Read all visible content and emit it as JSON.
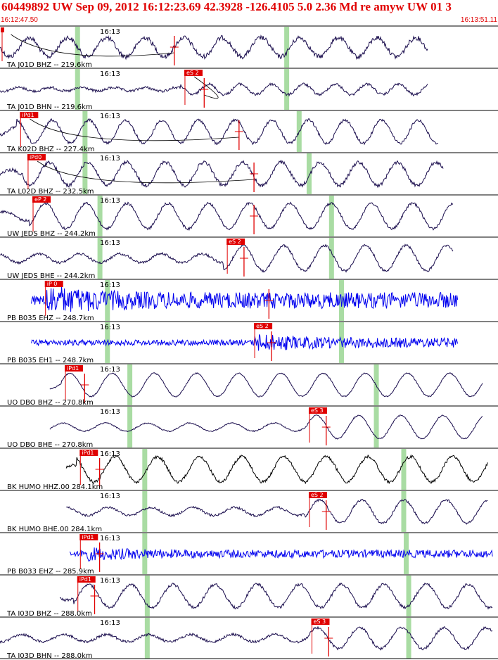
{
  "header": {
    "title": "60449892 UW Sep 09, 2012 16:12:23.69   42.3928 -126.4105  5.0 2.36 Md re amyw UW 01   3",
    "start_time": "16:12:47.50",
    "end_time": "16:13:51.11"
  },
  "time_tick_label": "16:13",
  "colors": {
    "header_red": "#e00000",
    "pick_red": "#e00000",
    "green_window": "#a9dca3",
    "trace_dark": "#1a0d4d",
    "trace_blue": "#0000ee",
    "trace_black": "#000000"
  },
  "traces": [
    {
      "label": "TA J01D BHZ -- 219.6km",
      "color": "dark",
      "pick": "",
      "pick_pos": 0.002,
      "spike_pos": 0.35,
      "green": [
        0.155,
        0.575
      ],
      "amp": 0.45,
      "period": 55,
      "noise": 0.25,
      "start": 0.0,
      "end": 0.86,
      "curve": true
    },
    {
      "label": "TA J01D BHN -- 219.6km",
      "color": "dark",
      "pick": "eS 2",
      "pick_pos": 0.37,
      "spike_pos": 0.41,
      "green": [
        0.155,
        0.575
      ],
      "amp": 0.25,
      "period": 45,
      "noise": 0.25,
      "start": 0.0,
      "end": 0.86,
      "curve": true
    },
    {
      "label": "TA K02D BHZ -- 227.4km",
      "color": "dark",
      "pick": "iPd1",
      "pick_pos": 0.04,
      "spike_pos": 0.48,
      "green": [
        0.17,
        0.6
      ],
      "amp": 0.55,
      "period": 52,
      "noise": 0.12,
      "start": 0.0,
      "end": 0.88,
      "curve": true
    },
    {
      "label": "TA L02D BHZ -- 232.5km",
      "color": "dark",
      "pick": "iPd0",
      "pick_pos": 0.055,
      "spike_pos": 0.51,
      "green": [
        0.17,
        0.62
      ],
      "amp": 0.55,
      "period": 55,
      "noise": 0.15,
      "start": 0.0,
      "end": 0.89,
      "curve": true
    },
    {
      "label": "UW JEDS BHZ -- 244.2km",
      "color": "dark",
      "pick": "eP 2",
      "pick_pos": 0.065,
      "spike_pos": 0.51,
      "green": [
        0.2,
        0.665
      ],
      "amp": 0.6,
      "period": 58,
      "noise": 0.1,
      "start": 0.0,
      "end": 0.91,
      "curve": false
    },
    {
      "label": "UW JEDS BHE -- 244.2km",
      "color": "dark",
      "pick": "eS 2",
      "pick_pos": 0.455,
      "spike_pos": 0.49,
      "green": [
        0.2,
        0.665
      ],
      "amp": 0.6,
      "period": 58,
      "noise": 0.1,
      "start": 0.0,
      "end": 0.91,
      "curve": false
    },
    {
      "label": "PB B035 EHZ -- 248.7km",
      "color": "blue",
      "pick": "iP 0",
      "pick_pos": 0.09,
      "spike_pos": 0.54,
      "green": [
        0.215,
        0.685
      ],
      "amp": 0.5,
      "period": 4,
      "noise": 0.9,
      "start": 0.063,
      "end": 0.92,
      "curve": false
    },
    {
      "label": "PB B035 EH1 -- 248.7km",
      "color": "blue",
      "pick": "eS 2",
      "pick_pos": 0.51,
      "spike_pos": 0.545,
      "green": [
        0.215,
        0.685
      ],
      "amp": 0.3,
      "period": 4,
      "noise": 0.9,
      "start": 0.063,
      "end": 0.92,
      "curve": false
    },
    {
      "label": "UO DBO BHZ -- 270.8km",
      "color": "dark",
      "pick": "iPd1",
      "pick_pos": 0.13,
      "spike_pos": 0.17,
      "green": [
        0.26,
        0.755
      ],
      "amp": 0.55,
      "period": 60,
      "noise": 0.05,
      "start": 0.1,
      "end": 0.97,
      "curve": false
    },
    {
      "label": "UO DBO BHE -- 270.8km",
      "color": "dark",
      "pick": "eS 3",
      "pick_pos": 0.62,
      "spike_pos": 0.655,
      "green": [
        0.26,
        0.755
      ],
      "amp": 0.55,
      "period": 60,
      "noise": 0.05,
      "start": 0.1,
      "end": 0.97,
      "curve": false
    },
    {
      "label": "BK HUMO HHZ.00 284.1km",
      "color": "black",
      "pick": "iPd1",
      "pick_pos": 0.16,
      "spike_pos": 0.2,
      "green": [
        0.29,
        0.81
      ],
      "amp": 0.6,
      "period": 60,
      "noise": 0.12,
      "start": 0.133,
      "end": 0.98,
      "curve": false
    },
    {
      "label": "BK HUMO BHE.00 284.1km",
      "color": "dark",
      "pick": "eS 2",
      "pick_pos": 0.62,
      "spike_pos": 0.655,
      "green": [
        0.29,
        0.81
      ],
      "amp": 0.55,
      "period": 60,
      "noise": 0.1,
      "start": 0.133,
      "end": 0.98,
      "curve": false
    },
    {
      "label": "PB B033 EHZ -- 285.9km",
      "color": "blue",
      "pick": "iPd1",
      "pick_pos": 0.16,
      "spike_pos": 0.2,
      "green": [
        0.29,
        0.815
      ],
      "amp": 0.25,
      "period": 4,
      "noise": 0.8,
      "start": 0.14,
      "end": 0.99,
      "curve": false
    },
    {
      "label": "TA I03D BHZ -- 288.0km",
      "color": "dark",
      "pick": "iPd1",
      "pick_pos": 0.155,
      "spike_pos": 0.19,
      "green": [
        0.295,
        0.82
      ],
      "amp": 0.55,
      "period": 60,
      "noise": 0.12,
      "start": 0.12,
      "end": 0.99,
      "curve": false
    },
    {
      "label": "TA I03D BHN -- 288.0km",
      "color": "dark",
      "pick": "eS 3",
      "pick_pos": 0.625,
      "spike_pos": 0.66,
      "green": [
        0.295,
        0.82
      ],
      "amp": 0.5,
      "period": 60,
      "noise": 0.12,
      "start": 0.0,
      "end": 0.99,
      "curve": false
    }
  ]
}
